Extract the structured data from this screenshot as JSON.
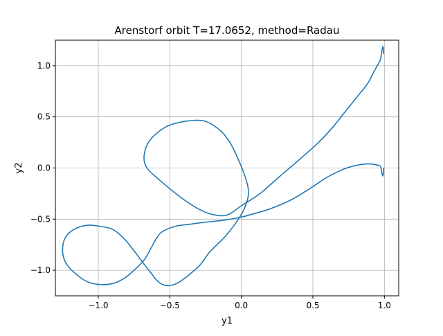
{
  "chart_data": {
    "type": "line",
    "title": "Arenstorf orbit T=17.0652, method=Radau",
    "xlabel": "y1",
    "ylabel": "y2",
    "xlim": [
      -1.3,
      1.1
    ],
    "ylim": [
      -1.25,
      1.25
    ],
    "grid": true,
    "xticks": [
      -1.0,
      -0.5,
      0.0,
      0.5,
      1.0
    ],
    "xtick_labels": [
      "−1.0",
      "−0.5",
      "0.0",
      "0.5",
      "1.0"
    ],
    "yticks": [
      -1.0,
      -0.5,
      0.0,
      0.5,
      1.0
    ],
    "ytick_labels": [
      "−1.0",
      "−0.5",
      "0.0",
      "0.5",
      "1.0"
    ],
    "series": [
      {
        "color": "#1f77b4",
        "x": [
          0.994,
          0.97,
          0.93,
          0.88,
          0.82,
          0.76,
          0.7,
          0.6,
          0.48,
          0.35,
          0.2,
          0.08,
          0.0,
          -0.12,
          -0.25,
          -0.36,
          -0.46,
          -0.55,
          -0.59,
          -0.63,
          -0.68,
          -0.75,
          -0.82,
          -0.9,
          -0.99,
          -1.08,
          -1.17,
          -1.23,
          -1.25,
          -1.23,
          -1.17,
          -1.08,
          -0.99,
          -0.9,
          -0.82,
          -0.75,
          -0.68,
          -0.63,
          -0.59,
          -0.55,
          -0.5,
          -0.44,
          -0.37,
          -0.29,
          -0.22,
          -0.12,
          -0.04,
          0.02,
          0.05,
          0.03,
          -0.02,
          -0.08,
          -0.15,
          -0.26,
          -0.4,
          -0.53,
          -0.64,
          -0.68,
          -0.66,
          -0.57,
          -0.44,
          -0.3,
          -0.2,
          -0.1,
          0.0,
          0.13,
          0.27,
          0.42,
          0.54,
          0.64,
          0.72,
          0.8,
          0.88,
          0.93,
          0.97,
          0.994
        ],
        "y": [
          0.0,
          0.02,
          0.035,
          0.04,
          0.03,
          0.01,
          -0.02,
          -0.09,
          -0.2,
          -0.31,
          -0.4,
          -0.45,
          -0.48,
          -0.51,
          -0.53,
          -0.55,
          -0.57,
          -0.62,
          -0.68,
          -0.78,
          -0.9,
          -1.0,
          -1.08,
          -1.13,
          -1.14,
          -1.11,
          -1.02,
          -0.92,
          -0.8,
          -0.68,
          -0.6,
          -0.56,
          -0.57,
          -0.6,
          -0.69,
          -0.81,
          -0.94,
          -1.03,
          -1.1,
          -1.14,
          -1.15,
          -1.12,
          -1.05,
          -0.95,
          -0.82,
          -0.68,
          -0.54,
          -0.4,
          -0.25,
          -0.1,
          0.08,
          0.25,
          0.37,
          0.46,
          0.455,
          0.4,
          0.27,
          0.12,
          0.0,
          -0.12,
          -0.27,
          -0.4,
          -0.455,
          -0.46,
          -0.37,
          -0.25,
          -0.08,
          0.1,
          0.25,
          0.4,
          0.54,
          0.68,
          0.82,
          0.95,
          1.05,
          1.12
        ]
      }
    ]
  }
}
